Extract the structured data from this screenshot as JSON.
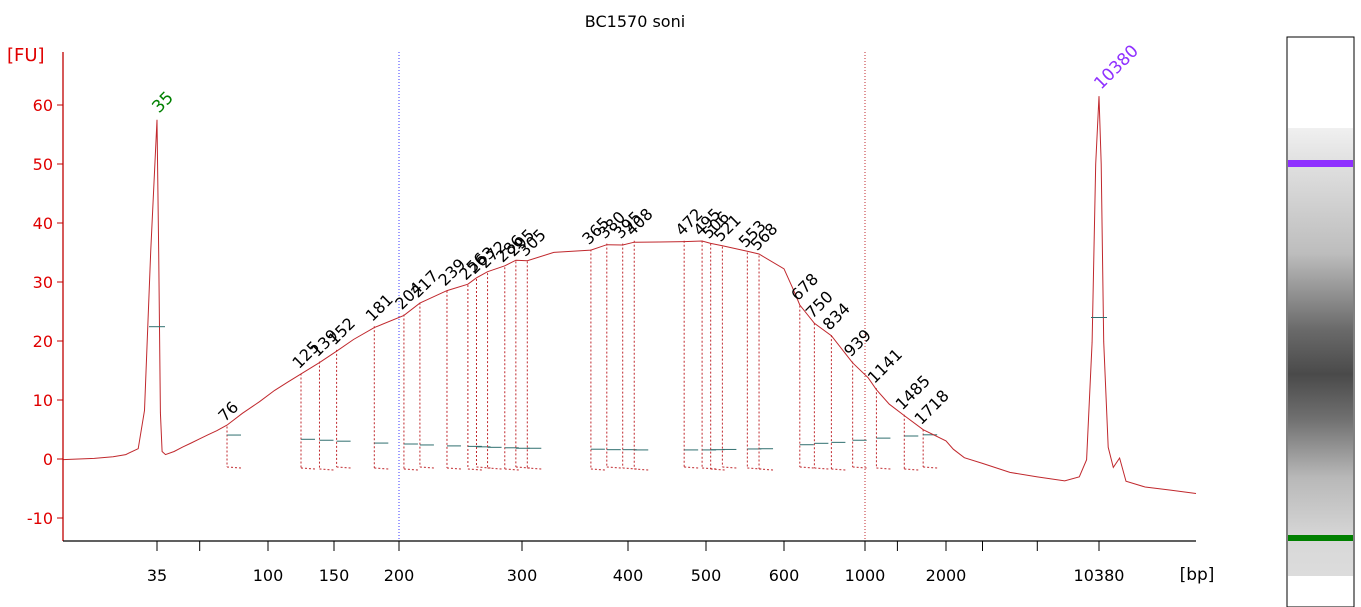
{
  "chart_data": {
    "type": "line",
    "title": "BC1570 soni",
    "ylabel": "[FU]",
    "xlabel": "[bp]",
    "ylim": [
      -13,
      67
    ],
    "y_ticks": [
      -10,
      0,
      10,
      20,
      30,
      40,
      50,
      60
    ],
    "x_tick_labels": [
      {
        "value": 35,
        "label": "35"
      },
      {
        "value": 100,
        "label": "100"
      },
      {
        "value": 150,
        "label": "150"
      },
      {
        "value": 200,
        "label": "200"
      },
      {
        "value": 300,
        "label": "300"
      },
      {
        "value": 400,
        "label": "400"
      },
      {
        "value": 500,
        "label": "500"
      },
      {
        "value": 600,
        "label": "600"
      },
      {
        "value": 1000,
        "label": "1000"
      },
      {
        "value": 2000,
        "label": "2000"
      },
      {
        "value": 10380,
        "label": "10380"
      }
    ],
    "marker_labels": [
      {
        "bp": 35,
        "label": "35",
        "color": "#008000",
        "height": 57.5
      },
      {
        "bp": 10380,
        "label": "10380",
        "color": "#8f30ff",
        "height": 61.5
      }
    ],
    "peak_labels": [
      {
        "bp": 76,
        "label": "76",
        "height": 5.5
      },
      {
        "bp": 125,
        "label": "125",
        "height": 14.5
      },
      {
        "bp": 139,
        "label": "139",
        "height": 16.5
      },
      {
        "bp": 152,
        "label": "152",
        "height": 18.5
      },
      {
        "bp": 181,
        "label": "181",
        "height": 22.5
      },
      {
        "bp": 204,
        "label": "204",
        "height": 24.5
      },
      {
        "bp": 217,
        "label": "217",
        "height": 26.5
      },
      {
        "bp": 239,
        "label": "239",
        "height": 28.5
      },
      {
        "bp": 256,
        "label": "256",
        "height": 29.5
      },
      {
        "bp": 263,
        "label": "263",
        "height": 30.5
      },
      {
        "bp": 272,
        "label": "272",
        "height": 31.5
      },
      {
        "bp": 286,
        "label": "286",
        "height": 32.5
      },
      {
        "bp": 295,
        "label": "295",
        "height": 33.5
      },
      {
        "bp": 305,
        "label": "305",
        "height": 33.5
      },
      {
        "bp": 365,
        "label": "365",
        "height": 35.5
      },
      {
        "bp": 380,
        "label": "380",
        "height": 36.5
      },
      {
        "bp": 395,
        "label": "395",
        "height": 36.5
      },
      {
        "bp": 408,
        "label": "408",
        "height": 37.0
      },
      {
        "bp": 472,
        "label": "472",
        "height": 37.0
      },
      {
        "bp": 495,
        "label": "495",
        "height": 37.0
      },
      {
        "bp": 506,
        "label": "506",
        "height": 36.5
      },
      {
        "bp": 521,
        "label": "521",
        "height": 36.0
      },
      {
        "bp": 553,
        "label": "553",
        "height": 35.0
      },
      {
        "bp": 568,
        "label": "568",
        "height": 34.5
      },
      {
        "bp": 678,
        "label": "678",
        "height": 26.0
      },
      {
        "bp": 750,
        "label": "750",
        "height": 23.0
      },
      {
        "bp": 834,
        "label": "834",
        "height": 21.0
      },
      {
        "bp": 939,
        "label": "939",
        "height": 16.5
      },
      {
        "bp": 1141,
        "label": "1141",
        "height": 12.0
      },
      {
        "bp": 1485,
        "label": "1485",
        "height": 7.5
      },
      {
        "bp": 1718,
        "label": "1718",
        "height": 5.0
      }
    ],
    "series": [
      {
        "color": "#c0282d",
        "points": [
          [
            20,
            -0.1
          ],
          [
            25,
            0
          ],
          [
            28,
            0.2
          ],
          [
            30,
            0.5
          ],
          [
            32,
            1.5
          ],
          [
            33,
            8
          ],
          [
            34,
            35
          ],
          [
            35,
            57.5
          ],
          [
            36,
            35
          ],
          [
            37,
            8
          ],
          [
            38,
            1.5
          ],
          [
            40,
            1.0
          ],
          [
            45,
            1.5
          ],
          [
            50,
            2.2
          ],
          [
            55,
            2.8
          ],
          [
            60,
            3.4
          ],
          [
            65,
            4.0
          ],
          [
            70,
            4.6
          ],
          [
            76,
            5.5
          ],
          [
            85,
            7.5
          ],
          [
            95,
            9.5
          ],
          [
            105,
            11.5
          ],
          [
            115,
            13.0
          ],
          [
            125,
            14.5
          ],
          [
            139,
            16.5
          ],
          [
            152,
            18.5
          ],
          [
            165,
            20.5
          ],
          [
            181,
            22.5
          ],
          [
            204,
            24.5
          ],
          [
            217,
            26.5
          ],
          [
            239,
            28.5
          ],
          [
            256,
            29.5
          ],
          [
            263,
            30.5
          ],
          [
            272,
            31.5
          ],
          [
            286,
            32.5
          ],
          [
            295,
            33.5
          ],
          [
            305,
            33.5
          ],
          [
            330,
            35.0
          ],
          [
            365,
            35.5
          ],
          [
            380,
            36.5
          ],
          [
            395,
            36.5
          ],
          [
            408,
            37.0
          ],
          [
            440,
            37.0
          ],
          [
            472,
            37.0
          ],
          [
            495,
            37.0
          ],
          [
            506,
            36.5
          ],
          [
            521,
            36.0
          ],
          [
            553,
            35.0
          ],
          [
            568,
            34.5
          ],
          [
            600,
            32.0
          ],
          [
            640,
            29.0
          ],
          [
            678,
            26.0
          ],
          [
            750,
            23.0
          ],
          [
            834,
            21.0
          ],
          [
            939,
            16.5
          ],
          [
            1040,
            14.0
          ],
          [
            1141,
            12.0
          ],
          [
            1300,
            9.5
          ],
          [
            1485,
            7.5
          ],
          [
            1718,
            5.0
          ],
          [
            2000,
            3.0
          ],
          [
            2400,
            1.5
          ],
          [
            3000,
            0
          ],
          [
            4000,
            -1.0
          ],
          [
            5500,
            -2.5
          ],
          [
            7000,
            -3.2
          ],
          [
            8500,
            -3.8
          ],
          [
            9300,
            -3.0
          ],
          [
            9700,
            0
          ],
          [
            10000,
            20
          ],
          [
            10200,
            50
          ],
          [
            10380,
            61.5
          ],
          [
            10550,
            50
          ],
          [
            10750,
            20
          ],
          [
            11100,
            2
          ],
          [
            11500,
            -1.5
          ],
          [
            12000,
            0
          ],
          [
            12500,
            -4
          ],
          [
            14000,
            -5.0
          ],
          [
            16000,
            -5.5
          ],
          [
            18000,
            -6.0
          ]
        ]
      }
    ]
  },
  "gel": {
    "upper_marker_color": "#8f30ff",
    "lower_marker_color": "#008000"
  }
}
